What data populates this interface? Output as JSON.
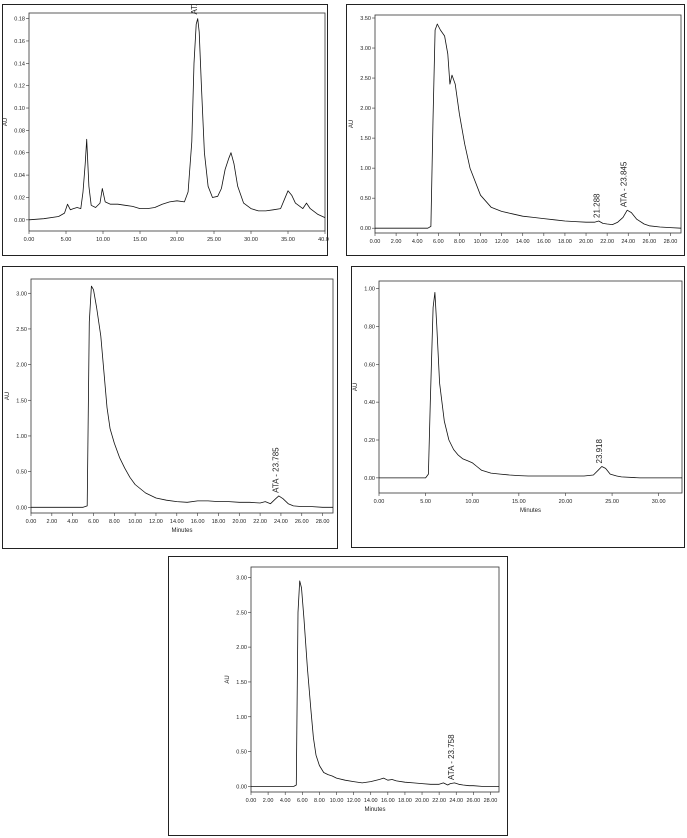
{
  "chart_data": [
    {
      "type": "line",
      "ylabel": "AU",
      "xlabel": "",
      "xlim": [
        0,
        40
      ],
      "ylim": [
        -0.01,
        0.185
      ],
      "xticks": [
        "0.00",
        "5.00",
        "10.00",
        "15.00",
        "20.00",
        "25.00",
        "30.00",
        "35.00",
        "40.00"
      ],
      "yticks": [
        "0.00",
        "0.02",
        "0.04",
        "0.06",
        "0.08",
        "0.10",
        "0.12",
        "0.14",
        "0.16",
        "0.18"
      ],
      "series": [
        {
          "x": [
            0,
            2,
            4,
            4.8,
            5.2,
            5.6,
            6,
            6.5,
            7,
            7.3,
            7.6,
            7.8,
            8.1,
            8.4,
            9,
            9.6,
            9.9,
            10.3,
            11,
            12,
            13,
            14,
            15,
            16,
            17,
            18,
            19,
            20,
            21,
            21.5,
            22,
            22.3,
            22.6,
            22.8,
            23,
            23.3,
            23.7,
            24.2,
            24.8,
            25.5,
            26,
            26.5,
            27,
            27.3,
            27.7,
            28.2,
            29,
            30,
            31,
            32,
            33,
            34,
            34.5,
            35,
            35.5,
            36,
            37,
            37.5,
            38,
            39,
            40
          ],
          "y": [
            0,
            0.001,
            0.003,
            0.006,
            0.014,
            0.009,
            0.01,
            0.011,
            0.01,
            0.025,
            0.05,
            0.072,
            0.03,
            0.013,
            0.011,
            0.015,
            0.028,
            0.016,
            0.014,
            0.014,
            0.013,
            0.012,
            0.01,
            0.01,
            0.011,
            0.014,
            0.016,
            0.017,
            0.016,
            0.025,
            0.07,
            0.14,
            0.175,
            0.18,
            0.168,
            0.12,
            0.06,
            0.03,
            0.02,
            0.021,
            0.028,
            0.045,
            0.055,
            0.06,
            0.05,
            0.03,
            0.015,
            0.01,
            0.008,
            0.008,
            0.009,
            0.01,
            0.018,
            0.026,
            0.022,
            0.015,
            0.01,
            0.015,
            0.01,
            0.005,
            0.002
          ]
        }
      ],
      "annotations": [
        {
          "text": "ATA - 22.722",
          "x": 22.72,
          "y": 0.181
        }
      ]
    },
    {
      "type": "line",
      "ylabel": "AU",
      "xlabel": "",
      "xlim": [
        0,
        29
      ],
      "ylim": [
        -0.08,
        3.55
      ],
      "xticks": [
        "0.00",
        "2.00",
        "4.00",
        "6.00",
        "8.00",
        "10.00",
        "12.00",
        "14.00",
        "16.00",
        "18.00",
        "20.00",
        "22.00",
        "24.00",
        "26.00",
        "28.00"
      ],
      "yticks": [
        "0.00",
        "0.50",
        "1.00",
        "1.50",
        "2.00",
        "2.50",
        "3.00",
        "3.50"
      ],
      "series": [
        {
          "x": [
            0,
            2,
            4,
            5,
            5.3,
            5.5,
            5.7,
            5.9,
            6.2,
            6.6,
            6.9,
            7.1,
            7.3,
            7.6,
            8,
            8.5,
            9,
            10,
            11,
            12,
            13,
            14,
            15,
            16,
            17,
            18,
            19,
            20,
            20.8,
            21.2,
            21.6,
            22,
            22.5,
            23,
            23.5,
            23.9,
            24.3,
            24.8,
            25.5,
            26,
            27,
            28,
            29
          ],
          "y": [
            0,
            0,
            0,
            0,
            0.03,
            1.8,
            3.3,
            3.4,
            3.3,
            3.2,
            2.9,
            2.4,
            2.55,
            2.4,
            1.9,
            1.4,
            1.0,
            0.55,
            0.35,
            0.28,
            0.24,
            0.2,
            0.18,
            0.16,
            0.14,
            0.12,
            0.11,
            0.1,
            0.1,
            0.12,
            0.08,
            0.07,
            0.06,
            0.1,
            0.18,
            0.3,
            0.26,
            0.15,
            0.07,
            0.04,
            0.02,
            0.01,
            0
          ]
        }
      ],
      "annotations": [
        {
          "text": "21.288",
          "x": 21.29,
          "y": 0.12
        },
        {
          "text": "ATA - 23.845",
          "x": 23.85,
          "y": 0.3
        }
      ]
    },
    {
      "type": "line",
      "ylabel": "AU",
      "xlabel": "Minutes",
      "xlim": [
        0,
        29
      ],
      "ylim": [
        -0.08,
        3.2
      ],
      "xticks": [
        "0.00",
        "2.00",
        "4.00",
        "6.00",
        "8.00",
        "10.00",
        "12.00",
        "14.00",
        "16.00",
        "18.00",
        "20.00",
        "22.00",
        "24.00",
        "26.00",
        "28.00"
      ],
      "yticks": [
        "0.00",
        "0.50",
        "1.00",
        "1.50",
        "2.00",
        "2.50",
        "3.00"
      ],
      "series": [
        {
          "x": [
            0,
            2,
            4,
            5,
            5.4,
            5.6,
            5.8,
            6,
            6.3,
            6.7,
            7,
            7.3,
            7.6,
            8,
            8.5,
            9,
            9.5,
            10,
            11,
            12,
            13,
            14,
            15,
            16,
            17,
            18,
            19,
            20,
            21,
            22,
            22.5,
            23,
            23.5,
            23.8,
            24.2,
            24.7,
            25.2,
            26,
            27,
            28,
            29
          ],
          "y": [
            0,
            0,
            0,
            0,
            0.02,
            2.6,
            3.1,
            3.05,
            2.8,
            2.4,
            1.9,
            1.4,
            1.1,
            0.9,
            0.7,
            0.55,
            0.42,
            0.32,
            0.2,
            0.13,
            0.1,
            0.08,
            0.07,
            0.09,
            0.09,
            0.08,
            0.08,
            0.07,
            0.07,
            0.06,
            0.08,
            0.05,
            0.12,
            0.16,
            0.12,
            0.05,
            0.02,
            0.01,
            0.01,
            0,
            0
          ]
        }
      ],
      "annotations": [
        {
          "text": "ATA - 23.785",
          "x": 23.79,
          "y": 0.16
        }
      ]
    },
    {
      "type": "line",
      "ylabel": "AU",
      "xlabel": "Minutes",
      "xlim": [
        0,
        32.5
      ],
      "ylim": [
        -0.08,
        1.04
      ],
      "xticks": [
        "0.00",
        "5.00",
        "10.00",
        "15.00",
        "20.00",
        "25.00",
        "30.00"
      ],
      "yticks": [
        "0.00",
        "0.20",
        "0.40",
        "0.60",
        "0.80",
        "1.00"
      ],
      "series": [
        {
          "x": [
            0,
            2,
            4,
            5,
            5.3,
            5.5,
            5.8,
            6,
            6.2,
            6.5,
            7,
            7.5,
            8,
            8.5,
            9,
            9.5,
            10,
            10.5,
            11,
            12,
            13,
            14,
            15,
            16,
            17,
            18,
            19,
            20,
            21,
            22,
            23,
            23.5,
            23.9,
            24.3,
            24.8,
            25.5,
            26,
            28,
            30,
            32.5
          ],
          "y": [
            0,
            0,
            0,
            0,
            0.02,
            0.4,
            0.9,
            0.98,
            0.8,
            0.5,
            0.3,
            0.2,
            0.15,
            0.12,
            0.1,
            0.09,
            0.08,
            0.06,
            0.04,
            0.025,
            0.02,
            0.015,
            0.012,
            0.01,
            0.01,
            0.01,
            0.01,
            0.01,
            0.01,
            0.01,
            0.015,
            0.04,
            0.06,
            0.05,
            0.02,
            0.01,
            0.005,
            0,
            0,
            0
          ]
        }
      ],
      "annotations": [
        {
          "text": "23.918",
          "x": 23.92,
          "y": 0.06
        }
      ]
    },
    {
      "type": "line",
      "ylabel": "AU",
      "xlabel": "Minutes",
      "xlim": [
        0,
        29
      ],
      "ylim": [
        -0.08,
        3.15
      ],
      "xticks": [
        "0.00",
        "2.00",
        "4.00",
        "6.00",
        "8.00",
        "10.00",
        "12.00",
        "14.00",
        "16.00",
        "18.00",
        "20.00",
        "22.00",
        "24.00",
        "26.00",
        "28.00"
      ],
      "yticks": [
        "0.00",
        "0.50",
        "1.00",
        "1.50",
        "2.00",
        "2.50",
        "3.00"
      ],
      "series": [
        {
          "x": [
            0,
            2,
            4,
            5,
            5.3,
            5.5,
            5.7,
            5.9,
            6.2,
            6.6,
            7,
            7.3,
            7.6,
            8,
            8.5,
            9,
            9.5,
            10,
            11,
            12,
            13,
            14,
            15,
            15.5,
            16,
            16.5,
            17,
            18,
            19,
            20,
            21,
            22,
            22.5,
            23,
            23.3,
            23.8,
            24.3,
            24.8,
            25.5,
            26,
            27,
            28,
            29
          ],
          "y": [
            0,
            0,
            0,
            0,
            0.02,
            2.5,
            2.95,
            2.85,
            2.4,
            1.7,
            1.1,
            0.7,
            0.45,
            0.3,
            0.2,
            0.17,
            0.15,
            0.12,
            0.09,
            0.07,
            0.05,
            0.07,
            0.1,
            0.12,
            0.09,
            0.1,
            0.08,
            0.06,
            0.05,
            0.04,
            0.03,
            0.03,
            0.05,
            0.02,
            0.04,
            0.05,
            0.03,
            0.02,
            0.01,
            0.01,
            0,
            0,
            0
          ]
        }
      ],
      "annotations": [
        {
          "text": "ATA - 23.758",
          "x": 23.76,
          "y": 0.05
        }
      ]
    }
  ]
}
